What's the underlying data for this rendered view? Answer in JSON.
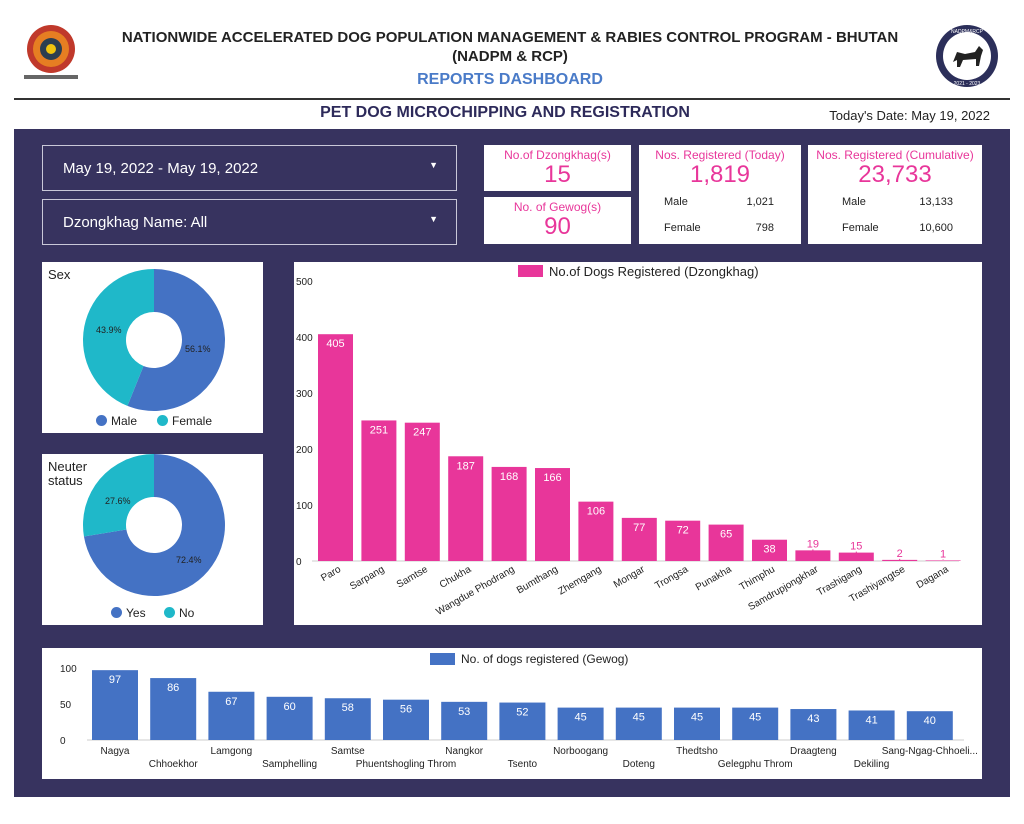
{
  "header": {
    "title_line1": "NATIONWIDE ACCELERATED DOG POPULATION MANAGEMENT & RABIES CONTROL PROGRAM - BHUTAN",
    "title_line2": "(NADPM & RCP)",
    "subtitle": "REPORTS DASHBOARD",
    "section_title": "PET DOG MICROCHIPPING AND REGISTRATION",
    "today": "Today's Date: May 19, 2022",
    "right_logo_text": "NADPM&RCP",
    "right_logo_years": "2021 - 2023"
  },
  "filters": {
    "date_range": "May 19, 2022 - May 19, 2022",
    "dzongkhag": "Dzongkhag Name: All"
  },
  "kpis": {
    "dzongkhag_label": "No.of Dzongkhag(s)",
    "dzongkhag_value": "15",
    "gewog_label": "No. of Gewog(s)",
    "gewog_value": "90",
    "today_label": "Nos. Registered (Today)",
    "today_value": "1,819",
    "today_male_label": "Male",
    "today_male": "1,021",
    "today_female_label": "Female",
    "today_female": "798",
    "cum_label": "Nos. Registered (Cumulative)",
    "cum_value": "23,733",
    "cum_male_label": "Male",
    "cum_male": "13,133",
    "cum_female_label": "Female",
    "cum_female": "10,600"
  },
  "colors": {
    "panel": "#37335f",
    "pink": "#e8369a",
    "blue": "#4472c4",
    "teal": "#1fb8c9"
  },
  "chart_data": [
    {
      "type": "pie",
      "title": "Sex",
      "labels": [
        "Male",
        "Female"
      ],
      "values": [
        56.1,
        43.9
      ],
      "value_labels": [
        "56.1%",
        "43.9%"
      ],
      "colors": [
        "#4472c4",
        "#1fb8c9"
      ],
      "legend": "bottom"
    },
    {
      "type": "pie",
      "title_line1": "Neuter",
      "title_line2": "status",
      "labels": [
        "Yes",
        "No"
      ],
      "values": [
        72.4,
        27.6
      ],
      "value_labels": [
        "72.4%",
        "27.6%"
      ],
      "colors": [
        "#4472c4",
        "#1fb8c9"
      ],
      "legend": "bottom"
    },
    {
      "type": "bar",
      "series_name": "No.of Dogs Registered (Dzongkhag)",
      "categories": [
        "Paro",
        "Sarpang",
        "Samtse",
        "Chukha",
        "Wangdue Phodrang",
        "Bumthang",
        "Zhemgang",
        "Mongar",
        "Trongsa",
        "Punakha",
        "Thimphu",
        "Samdrupjongkhar",
        "Trashigang",
        "Trashiyangtse",
        "Dagana"
      ],
      "values": [
        405,
        251,
        247,
        187,
        168,
        166,
        106,
        77,
        72,
        65,
        38,
        19,
        15,
        2,
        1
      ],
      "yticks": [
        0,
        100,
        200,
        300,
        400,
        500
      ],
      "ylim": [
        0,
        500
      ],
      "color": "#e8369a",
      "legend": "top"
    },
    {
      "type": "bar",
      "series_name": "No. of dogs registered (Gewog)",
      "categories": [
        "Nagya",
        "Chhoekhor",
        "Lamgong",
        "Samphelling",
        "Samtse",
        "Phuentshogling Throm",
        "Nangkor",
        "Tsento",
        "Norboogang",
        "Doteng",
        "Thedtsho",
        "Gelegphu Throm",
        "Draagteng",
        "Dekiling",
        "Sang-Ngag-Chhoeli..."
      ],
      "values": [
        97,
        86,
        67,
        60,
        58,
        56,
        53,
        52,
        45,
        45,
        45,
        45,
        43,
        41,
        40
      ],
      "yticks": [
        0,
        50,
        100
      ],
      "ylim": [
        0,
        100
      ],
      "color": "#4472c4",
      "legend": "top"
    }
  ]
}
